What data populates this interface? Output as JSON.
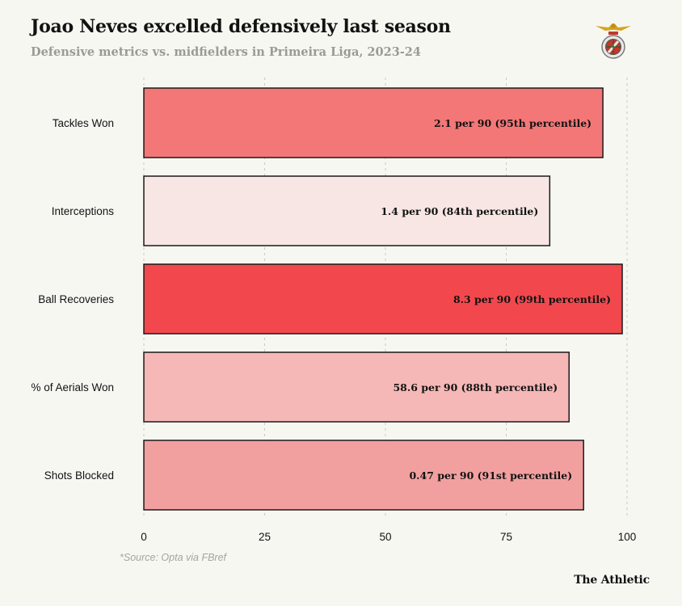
{
  "header": {
    "title": "Joao Neves excelled defensively last season",
    "subtitle": "Defensive metrics vs. midfielders in Primeira Liga, 2023-24"
  },
  "footer": {
    "source": "*Source: Opta via FBref",
    "brand": "The Athletic"
  },
  "crest": {
    "icon": "benfica-crest-icon"
  },
  "colors": {
    "background": "#f7f7f2",
    "grid": "#c8c8c4",
    "bar_stroke": "#1a1a1a",
    "text": "#121212"
  },
  "chart_data": {
    "type": "bar",
    "orientation": "horizontal",
    "title": "Joao Neves excelled defensively last season",
    "subtitle": "Defensive metrics vs. midfielders in Primeira Liga, 2023-24",
    "xlabel": "",
    "ylabel": "",
    "xlim": [
      0,
      100
    ],
    "xticks": [
      0,
      25,
      50,
      75,
      100
    ],
    "grid": true,
    "categories": [
      "Tackles Won",
      "Interceptions",
      "Ball Recoveries",
      "% of Aerials Won",
      "Shots Blocked"
    ],
    "values": [
      95,
      84,
      99,
      88,
      91
    ],
    "labels": [
      "2.1 per 90 (95th percentile)",
      "1.4 per 90 (84th percentile)",
      "8.3 per 90 (99th percentile)",
      "58.6 per 90 (88th percentile)",
      "0.47 per 90 (91st percentile)"
    ],
    "colors": [
      "#f47777",
      "#f7e6e3",
      "#f2484d",
      "#f5b8b7",
      "#f2a09f"
    ]
  }
}
